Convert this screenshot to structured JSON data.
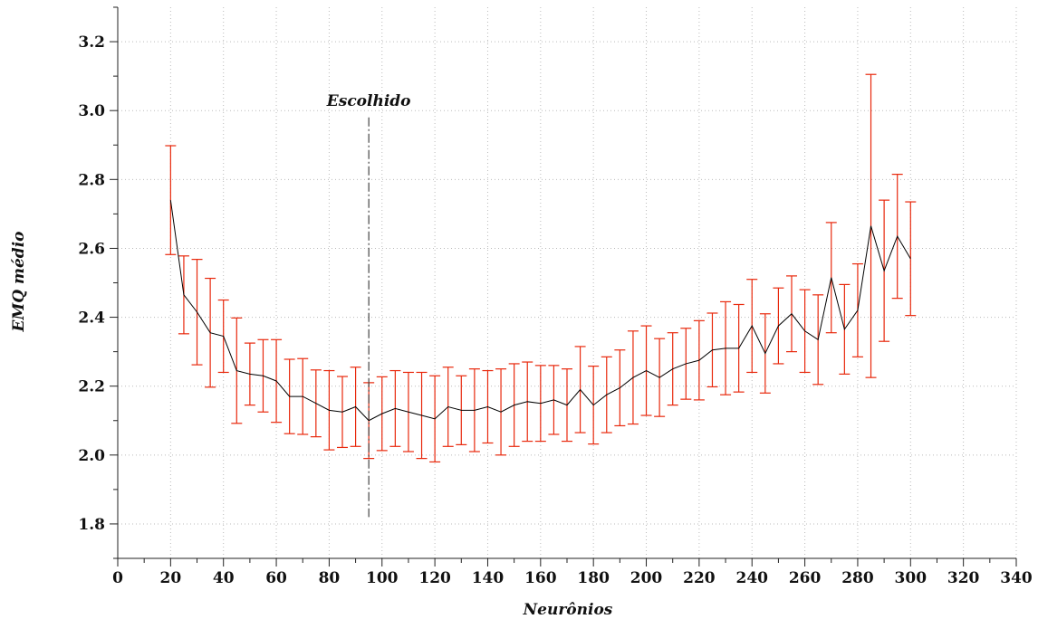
{
  "chart_data": {
    "type": "line",
    "title": "",
    "xlabel": "Neurônios",
    "ylabel": "EMQ médio",
    "xlim": [
      0,
      340
    ],
    "ylim": [
      1.7,
      3.3
    ],
    "xticks": [
      0,
      20,
      40,
      60,
      80,
      100,
      120,
      140,
      160,
      180,
      200,
      220,
      240,
      260,
      280,
      300,
      320,
      340
    ],
    "yticks": [
      1.8,
      2.0,
      2.2,
      2.4,
      2.6,
      2.8,
      3.0,
      3.2
    ],
    "ytick_labels": [
      "1.8",
      "2.0",
      "2.2",
      "2.4",
      "2.6",
      "2.8",
      "3.0",
      "3.2"
    ],
    "grid": true,
    "x": [
      20,
      25,
      30,
      35,
      40,
      45,
      50,
      55,
      60,
      65,
      70,
      75,
      80,
      85,
      90,
      95,
      100,
      105,
      110,
      115,
      120,
      125,
      130,
      135,
      140,
      145,
      150,
      155,
      160,
      165,
      170,
      175,
      180,
      185,
      190,
      195,
      200,
      205,
      210,
      215,
      220,
      225,
      230,
      235,
      240,
      245,
      250,
      255,
      260,
      265,
      270,
      275,
      280,
      285,
      290,
      295,
      300
    ],
    "series": [
      {
        "values": [
          2.74,
          2.465,
          2.415,
          2.355,
          2.345,
          2.245,
          2.235,
          2.23,
          2.215,
          2.17,
          2.17,
          2.15,
          2.13,
          2.125,
          2.14,
          2.1,
          2.12,
          2.135,
          2.125,
          2.115,
          2.105,
          2.14,
          2.13,
          2.13,
          2.14,
          2.125,
          2.145,
          2.155,
          2.15,
          2.16,
          2.145,
          2.19,
          2.145,
          2.175,
          2.195,
          2.225,
          2.245,
          2.225,
          2.25,
          2.265,
          2.275,
          2.305,
          2.31,
          2.31,
          2.375,
          2.295,
          2.375,
          2.41,
          2.36,
          2.335,
          2.515,
          2.365,
          2.42,
          2.665,
          2.535,
          2.635,
          2.57
        ],
        "error": [
          0.158,
          0.113,
          0.153,
          0.158,
          0.105,
          0.153,
          0.09,
          0.105,
          0.12,
          0.108,
          0.11,
          0.097,
          0.115,
          0.103,
          0.115,
          0.11,
          0.107,
          0.11,
          0.115,
          0.125,
          0.125,
          0.115,
          0.1,
          0.12,
          0.105,
          0.125,
          0.12,
          0.115,
          0.11,
          0.1,
          0.105,
          0.125,
          0.113,
          0.11,
          0.11,
          0.135,
          0.13,
          0.113,
          0.105,
          0.103,
          0.115,
          0.107,
          0.135,
          0.127,
          0.135,
          0.115,
          0.11,
          0.11,
          0.12,
          0.13,
          0.16,
          0.13,
          0.135,
          0.44,
          0.205,
          0.18,
          0.165
        ],
        "color": "#000000",
        "error_color": "#e8280c"
      }
    ],
    "annotations": [
      {
        "text": "Escolhido",
        "x": 95,
        "y_from": 1.82,
        "y_to": 2.98
      }
    ],
    "colors": {
      "grid": "#bbbbbb",
      "axis": "#222222",
      "line": "#000000",
      "error_bar": "#e8280c",
      "marker_line": "#444444"
    }
  }
}
